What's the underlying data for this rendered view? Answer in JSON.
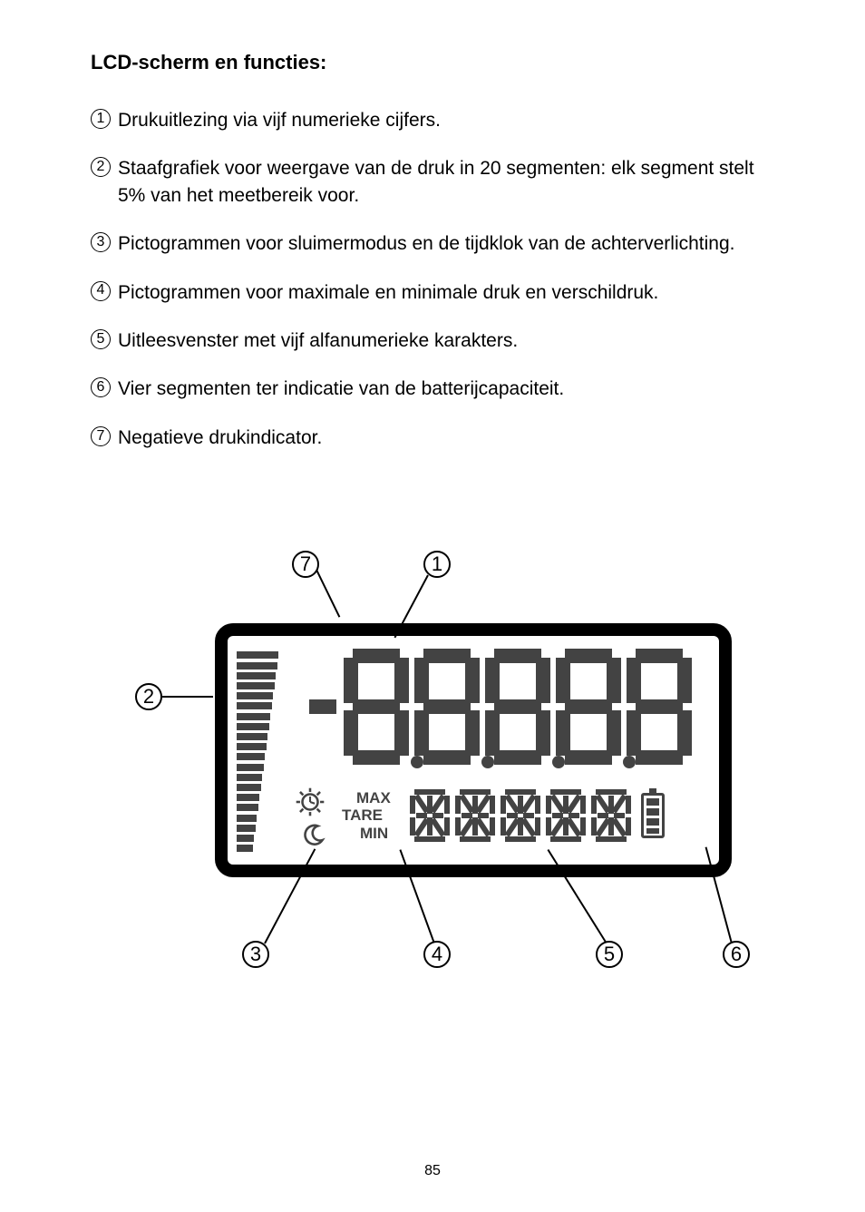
{
  "heading": "LCD-scherm en functies:",
  "items": [
    {
      "num": "1",
      "text": "Drukuitlezing via vijf numerieke cijfers."
    },
    {
      "num": "2",
      "text": "Staafgrafiek voor weergave van de druk in 20 segmenten: elk segment stelt 5% van het meetbereik voor."
    },
    {
      "num": "3",
      "text": "Pictogrammen voor sluimermodus en de tijdklok van de achterverlichting."
    },
    {
      "num": "4",
      "text": "Pictogrammen voor maximale en minimale druk en verschildruk."
    },
    {
      "num": "5",
      "text": "Uitleesvenster met vijf alfanumerieke karakters."
    },
    {
      "num": "6",
      "text": "Vier segmenten ter indicatie van de batterijcapaciteit."
    },
    {
      "num": "7",
      "text": "Negatieve drukindicator."
    }
  ],
  "callouts": {
    "c1": "1",
    "c2": "2",
    "c3": "3",
    "c4": "4",
    "c5": "5",
    "c6": "6",
    "c7": "7"
  },
  "labels": {
    "max": "MAX",
    "tare": "TARE",
    "min": "MIN"
  },
  "page_number": "85",
  "diagram": {
    "bargraph_segments": 20,
    "alpha_chars": 5,
    "battery_segments": 4,
    "colors": {
      "segment": "#434343",
      "frame": "#000000",
      "bg": "#ffffff"
    }
  }
}
